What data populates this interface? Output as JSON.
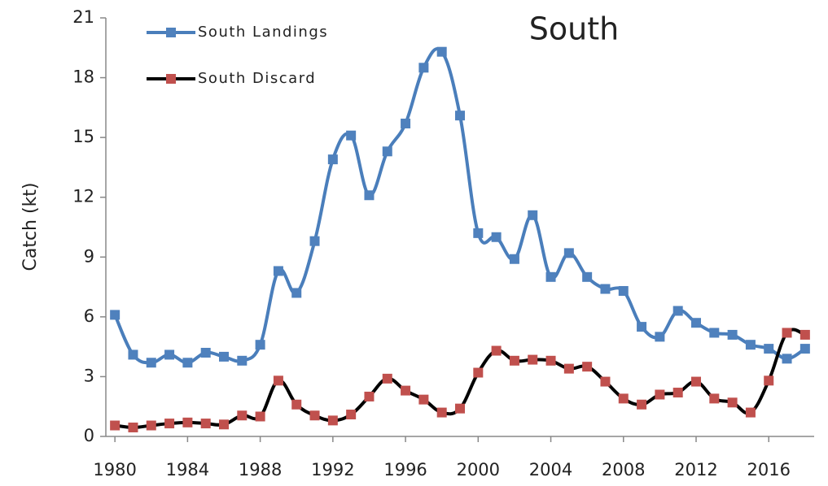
{
  "chart_data": {
    "type": "line",
    "title": "South",
    "y_label": "Catch (kt)",
    "x": [
      1980,
      1981,
      1982,
      1983,
      1984,
      1985,
      1986,
      1987,
      1988,
      1989,
      1990,
      1991,
      1992,
      1993,
      1994,
      1995,
      1996,
      1997,
      1998,
      1999,
      2000,
      2001,
      2002,
      2003,
      2004,
      2005,
      2006,
      2007,
      2008,
      2009,
      2010,
      2011,
      2012,
      2013,
      2014,
      2015,
      2016,
      2017,
      2018
    ],
    "series": [
      {
        "name": "South Landings",
        "color": "#4a7ebb",
        "marker_color": "#4f81bd",
        "values": [
          6.1,
          4.1,
          3.7,
          4.1,
          3.7,
          4.2,
          4.0,
          3.8,
          4.6,
          8.3,
          7.2,
          9.8,
          13.9,
          15.1,
          12.1,
          14.3,
          15.7,
          18.5,
          19.3,
          16.1,
          10.2,
          10.0,
          8.9,
          11.1,
          8.0,
          9.2,
          8.0,
          7.4,
          7.3,
          5.5,
          5.0,
          6.3,
          5.7,
          5.2,
          5.1,
          4.6,
          4.4,
          3.9,
          4.4
        ]
      },
      {
        "name": "South Discard",
        "color": "#000000",
        "marker_color": "#c0504d",
        "values": [
          0.55,
          0.45,
          0.55,
          0.65,
          0.7,
          0.65,
          0.6,
          1.05,
          1.0,
          2.8,
          1.6,
          1.05,
          0.8,
          1.1,
          2.0,
          2.9,
          2.3,
          1.85,
          1.2,
          1.4,
          3.2,
          4.3,
          3.8,
          3.85,
          3.8,
          3.4,
          3.5,
          2.75,
          1.9,
          1.6,
          2.1,
          2.2,
          2.75,
          1.9,
          1.7,
          1.2,
          2.8,
          5.2,
          5.1
        ]
      }
    ],
    "xlim": [
      1979.5,
      2018.5
    ],
    "xticks": [
      1980,
      1984,
      1988,
      1992,
      1996,
      2000,
      2004,
      2008,
      2012,
      2016
    ],
    "ylim": [
      0,
      21
    ],
    "yticks": [
      0,
      3,
      6,
      9,
      12,
      15,
      18,
      21
    ],
    "grid": false,
    "legend": "upper left"
  }
}
